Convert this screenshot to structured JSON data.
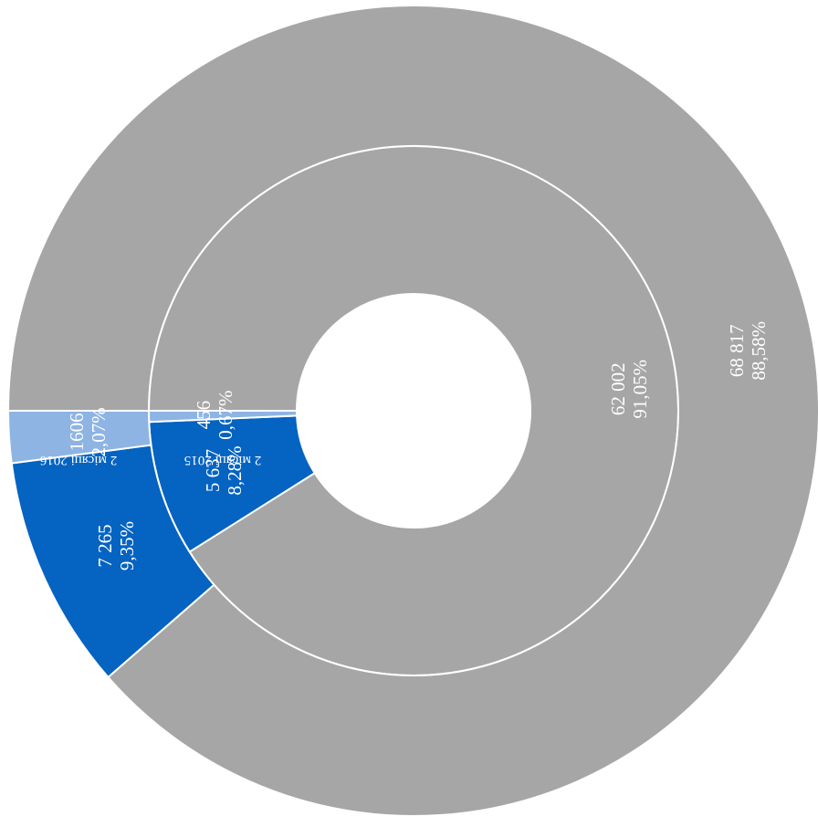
{
  "chart_data": {
    "type": "donut",
    "rings": [
      {
        "name": "2 місяці 2015",
        "slices": [
          {
            "value_label": "62 002",
            "pct_label": "91,05%",
            "value": 62002,
            "color": "#a6a6a6"
          },
          {
            "value_label": "5 637",
            "pct_label": "8,28%",
            "value": 5637,
            "color": "#0563c1"
          },
          {
            "value_label": "456",
            "pct_label": "0,67%",
            "value": 456,
            "color": "#8eb4e3"
          }
        ]
      },
      {
        "name": "2 місяці 2016",
        "slices": [
          {
            "value_label": "68 817",
            "pct_label": "88,58%",
            "value": 68817,
            "color": "#a6a6a6"
          },
          {
            "value_label": "7 265",
            "pct_label": "9,35%",
            "value": 7265,
            "color": "#0563c1"
          },
          {
            "value_label": "1606",
            "pct_label": "2,07%",
            "value": 1606,
            "color": "#8eb4e3"
          }
        ]
      }
    ]
  }
}
